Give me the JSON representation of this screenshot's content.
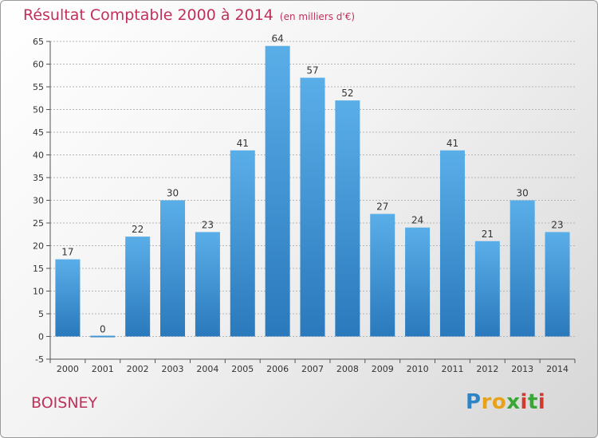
{
  "title": "Résultat Comptable 2000 à 2014",
  "unit_note": "(en milliers d'€)",
  "place_name": "BOISNEY",
  "logo": {
    "text": "Proxiti",
    "letters": [
      {
        "ch": "P",
        "color": "#2f84c6"
      },
      {
        "ch": "r",
        "color": "#e8a21a"
      },
      {
        "ch": "o",
        "color": "#e8a21a"
      },
      {
        "ch": "x",
        "color": "#3aa635"
      },
      {
        "ch": "i",
        "color": "#d23a2f"
      },
      {
        "ch": "t",
        "color": "#3aa635"
      },
      {
        "ch": "i",
        "color": "#d23a2f"
      }
    ]
  },
  "colors": {
    "title": "#c0305a",
    "bar_top": "#5aaee8",
    "bar_bottom": "#2a79bc",
    "grid": "#b5b5b5",
    "axis_text": "#333333"
  },
  "chart_data": {
    "type": "bar",
    "title": "Résultat Comptable 2000 à 2014",
    "ylabel": "en milliers d'€",
    "xlabel": "",
    "categories": [
      "2000",
      "2001",
      "2002",
      "2003",
      "2004",
      "2005",
      "2006",
      "2007",
      "2008",
      "2009",
      "2010",
      "2011",
      "2012",
      "2013",
      "2014"
    ],
    "values": [
      17,
      0,
      22,
      30,
      23,
      41,
      64,
      57,
      52,
      27,
      24,
      41,
      21,
      30,
      23
    ],
    "ylim": [
      -5,
      65
    ],
    "yticks": [
      -5,
      0,
      5,
      10,
      15,
      20,
      25,
      30,
      35,
      40,
      45,
      50,
      55,
      60,
      65
    ],
    "grid": true
  }
}
